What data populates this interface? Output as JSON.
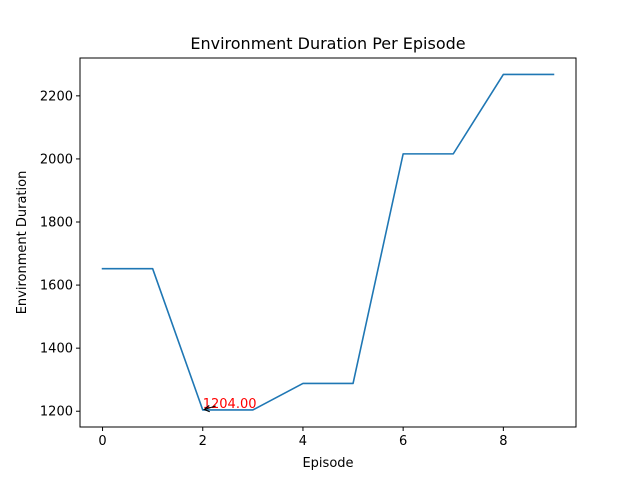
{
  "chart_data": {
    "type": "line",
    "title": "Environment Duration Per Episode",
    "xlabel": "Episode",
    "ylabel": "Environment Duration",
    "x": [
      0,
      1,
      2,
      3,
      4,
      5,
      6,
      7,
      8,
      9
    ],
    "series": [
      {
        "values": [
          1652,
          1652,
          1204,
          1204,
          1288,
          1288,
          2016,
          2016,
          2268,
          2268
        ],
        "color": "#1f77b4"
      }
    ],
    "xlim": [
      -0.45,
      9.45
    ],
    "ylim": [
      1150,
      2320
    ],
    "xticks": [
      0,
      2,
      4,
      6,
      8
    ],
    "yticks": [
      1200,
      1400,
      1600,
      1800,
      2000,
      2200
    ],
    "xtick_labels": [
      "0",
      "2",
      "4",
      "6",
      "8"
    ],
    "ytick_labels": [
      "1200",
      "1400",
      "1600",
      "1800",
      "2000",
      "2200"
    ],
    "grid": false,
    "annotation": {
      "text": "1204.00",
      "x": 2,
      "y": 1204,
      "color": "#ff0000"
    }
  }
}
